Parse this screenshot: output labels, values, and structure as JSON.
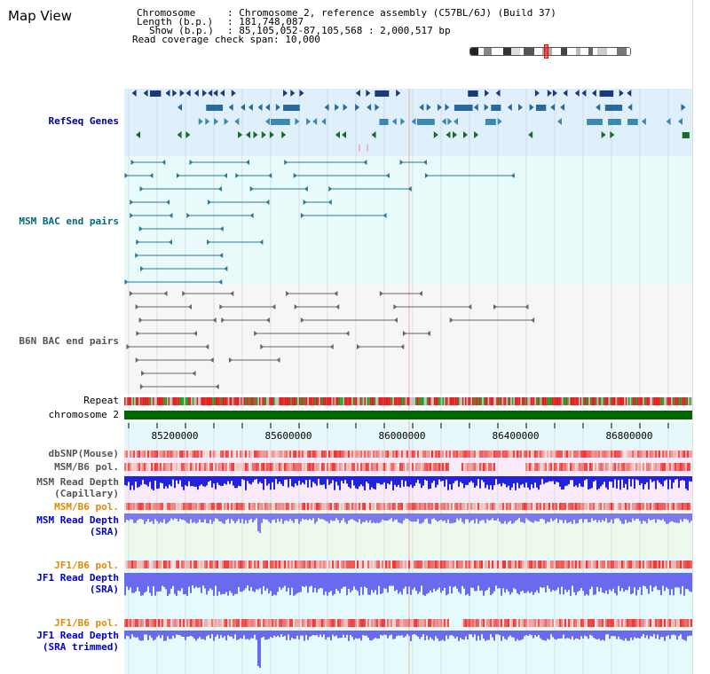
{
  "title": "Map View",
  "info": {
    "rows": [
      {
        "label": "Chromosome",
        "value": ": Chromosome 2, reference assembly (C57BL/6J) (Build 37)"
      },
      {
        "label": "Length (b.p.)",
        "value": ": 181,748,087"
      },
      {
        "label": "Show (b.p.)",
        "value": ": 85,105,052-87,105,568 : 2,000,517 bp"
      },
      {
        "label": "Read coverage check span",
        "value": ": 10,000"
      }
    ]
  },
  "tracks": {
    "refseq": "RefSeq Genes",
    "msm_bac": "MSM BAC end pairs",
    "b6n_bac": "B6N BAC end pairs",
    "repeat": "Repeat",
    "chromosome": "chromosome 2",
    "dbsnp": "dbSNP(Mouse)",
    "msm_b6_pol": "MSM/B6 pol.",
    "msm_depth_cap": "MSM Read Depth\n(Capillary)",
    "msm_b6_pol_2": "MSM/B6 pol.",
    "msm_depth_sra": "MSM Read Depth\n(SRA)",
    "jf1_b6_pol": "JF1/B6 pol.",
    "jf1_depth_sra": "JF1 Read Depth\n(SRA)",
    "jf1_b6_pol_2": "JF1/B6 pol.",
    "jf1_depth_trim": "JF1 Read Depth\n(SRA trimmed)"
  },
  "ruler": {
    "ticks": [
      "85200000",
      "85600000",
      "86000000",
      "86400000",
      "86800000"
    ]
  },
  "colors": {
    "refseq_label": "#00008b",
    "msm_label": "#006880",
    "b6n_label": "#555555",
    "pol_orange": "#e08a00",
    "depth_blue": "#0000cc",
    "chromosome_green": "#006400"
  }
}
